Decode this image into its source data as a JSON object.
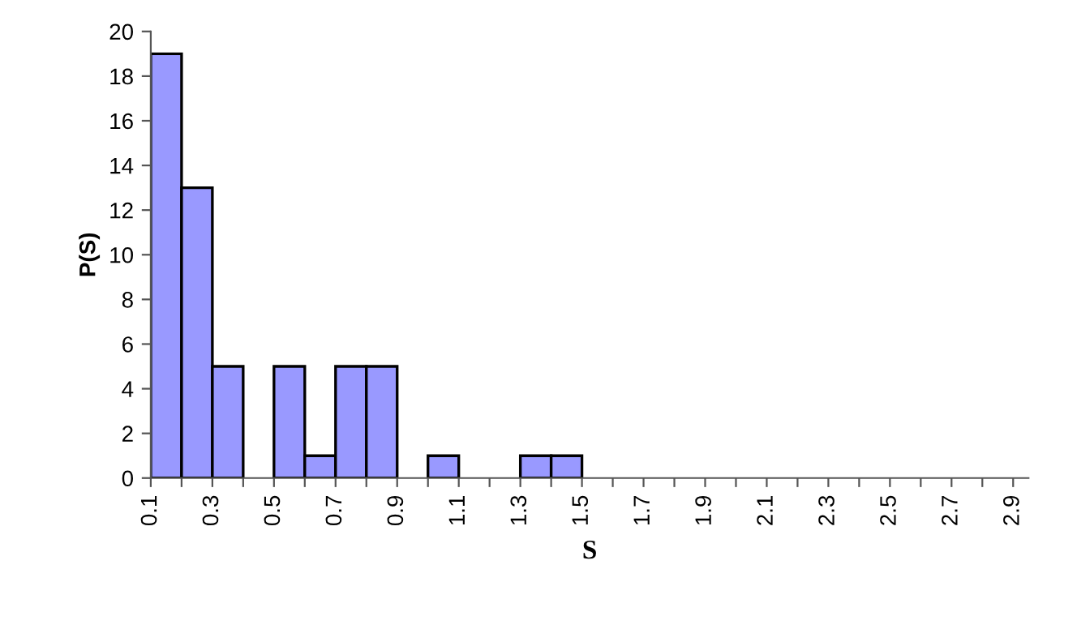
{
  "chart_data": {
    "type": "histogram",
    "xlabel": "S",
    "ylabel": "P(S)",
    "bins": [
      0.1,
      0.2,
      0.3,
      0.4,
      0.5,
      0.6,
      0.7,
      0.8,
      0.9,
      1.0,
      1.1,
      1.2,
      1.3,
      1.4,
      1.5
    ],
    "values": [
      19,
      13,
      5,
      0,
      5,
      1,
      5,
      5,
      0,
      1,
      0,
      0,
      1,
      1
    ],
    "color": "#9999ff",
    "xlim": [
      0.1,
      2.95
    ],
    "xticks": [
      0.1,
      {
        "value": 0.2,
        "label": null
      },
      0.3,
      {
        "value": 0.4,
        "label": null
      },
      0.5,
      {
        "value": 0.6,
        "label": null
      },
      0.7,
      {
        "value": 0.8,
        "label": null
      },
      0.9,
      {
        "value": 1.0,
        "label": null
      },
      1.1,
      {
        "value": 1.2,
        "label": null
      },
      1.3,
      {
        "value": 1.4,
        "label": null
      },
      1.5,
      {
        "value": 1.6,
        "label": null
      },
      1.7,
      {
        "value": 1.8,
        "label": null
      },
      1.9,
      {
        "value": 2.0,
        "label": null
      },
      2.1,
      {
        "value": 2.2,
        "label": null
      },
      2.3,
      {
        "value": 2.4,
        "label": null
      },
      2.5,
      {
        "value": 2.6,
        "label": null
      },
      2.7,
      {
        "value": 2.8,
        "label": null
      },
      2.9
    ],
    "ylim": [
      0,
      20
    ],
    "yticks": [
      0,
      2,
      4,
      6,
      8,
      10,
      12,
      14,
      16,
      18,
      20
    ],
    "grid": false
  }
}
